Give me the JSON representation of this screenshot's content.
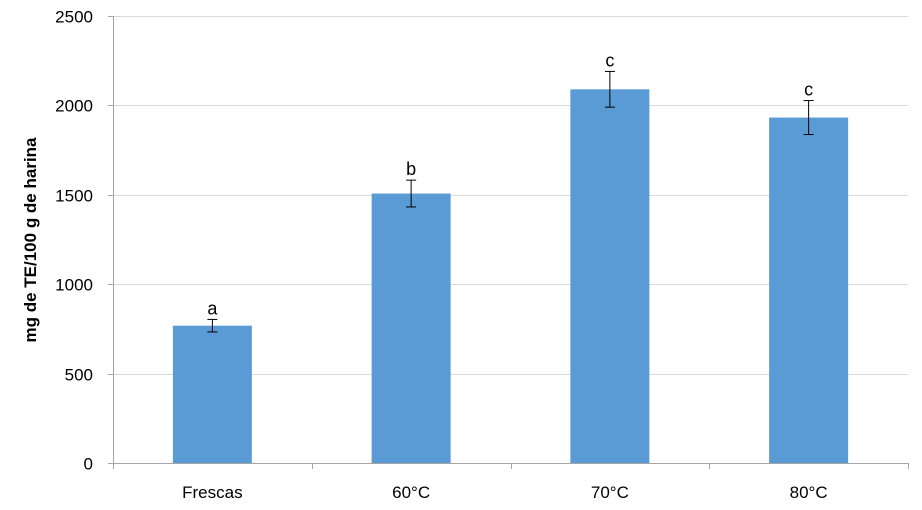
{
  "chart_data": {
    "type": "bar",
    "title": "",
    "xlabel": "",
    "ylabel": "mg de TE/100 g de harina",
    "categories": [
      "Frescas",
      "60°C",
      "70°C",
      "80°C"
    ],
    "values": [
      768,
      1507,
      2090,
      1932
    ],
    "errors": [
      35,
      75,
      100,
      95
    ],
    "annotations": [
      "a",
      "b",
      "c",
      "c"
    ],
    "ylim": [
      0,
      2500
    ],
    "yticks": [
      0,
      500,
      1000,
      1500,
      2000,
      2500
    ],
    "grid": true,
    "legend": "none",
    "bar_color": "#5B9BD5",
    "grid_color": "#D9D9D9",
    "axis_color": "#A6A6A6"
  }
}
